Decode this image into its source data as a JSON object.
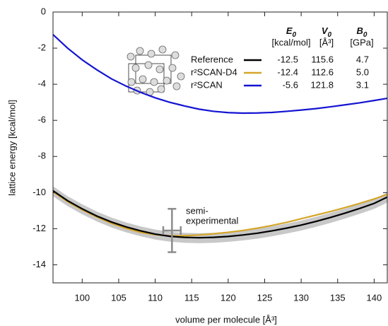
{
  "chart_data": {
    "type": "line",
    "xlabel": "volume per molecule [Å³]",
    "ylabel": "lattice energy  [kcal/mol]",
    "xlim": [
      96,
      141.8
    ],
    "ylim": [
      -15,
      0
    ],
    "xticks": [
      100,
      105,
      110,
      115,
      120,
      125,
      130,
      135,
      140
    ],
    "yticks": [
      0,
      -2,
      -4,
      -6,
      -8,
      -10,
      -12,
      -14
    ],
    "x": [
      96,
      98,
      100,
      102,
      104,
      106,
      108,
      110,
      112,
      114,
      116,
      118,
      120,
      122,
      124,
      126,
      128,
      130,
      132,
      134,
      136,
      138,
      140,
      141.8
    ],
    "series": [
      {
        "name": "Reference",
        "color": "#000000",
        "values": [
          -9.9,
          -10.45,
          -10.9,
          -11.3,
          -11.63,
          -11.9,
          -12.12,
          -12.3,
          -12.42,
          -12.48,
          -12.5,
          -12.48,
          -12.43,
          -12.35,
          -12.25,
          -12.12,
          -11.97,
          -11.8,
          -11.6,
          -11.38,
          -11.14,
          -10.88,
          -10.6,
          -10.25
        ]
      },
      {
        "name": "r²SCAN-D4",
        "color": "#d4a62a",
        "values": [
          -9.95,
          -10.5,
          -10.95,
          -11.35,
          -11.7,
          -11.98,
          -12.2,
          -12.33,
          -12.4,
          -12.39,
          -12.35,
          -12.28,
          -12.2,
          -12.1,
          -11.97,
          -11.82,
          -11.65,
          -11.45,
          -11.25,
          -11.05,
          -10.83,
          -10.6,
          -10.35,
          -10.1
        ]
      },
      {
        "name": "r²SCAN",
        "color": "#1414d2",
        "values": [
          -1.25,
          -2.0,
          -2.65,
          -3.2,
          -3.7,
          -4.1,
          -4.45,
          -4.75,
          -5.0,
          -5.2,
          -5.38,
          -5.5,
          -5.57,
          -5.6,
          -5.59,
          -5.56,
          -5.5,
          -5.43,
          -5.35,
          -5.25,
          -5.14,
          -5.03,
          -4.9,
          -4.78
        ]
      }
    ],
    "band": {
      "color": "#c8c8c8",
      "upper": [
        -9.65,
        -10.2,
        -10.65,
        -11.05,
        -11.38,
        -11.65,
        -11.87,
        -12.05,
        -12.17,
        -12.23,
        -12.25,
        -12.23,
        -12.18,
        -12.1,
        -12.0,
        -11.87,
        -11.72,
        -11.55,
        -11.35,
        -11.13,
        -10.89,
        -10.63,
        -10.35,
        -10.0
      ],
      "lower": [
        -10.2,
        -10.75,
        -11.2,
        -11.6,
        -11.93,
        -12.2,
        -12.42,
        -12.6,
        -12.72,
        -12.78,
        -12.8,
        -12.78,
        -12.73,
        -12.65,
        -12.55,
        -12.42,
        -12.27,
        -12.1,
        -11.9,
        -11.68,
        -11.44,
        -11.18,
        -10.9,
        -10.55
      ]
    },
    "errorbar": {
      "x": 112.3,
      "y": -12.1,
      "xerr": 1.2,
      "yerr": 1.2,
      "color": "#8c8c8c",
      "label": [
        "semi-",
        "experimental"
      ]
    },
    "table": {
      "columns": [
        {
          "symbol": "E",
          "sub": "0",
          "unit": "[kcal/mol]"
        },
        {
          "symbol": "V",
          "sub": "0",
          "unit": "[Å³]"
        },
        {
          "symbol": "B",
          "sub": "0",
          "unit": "[GPa]"
        }
      ],
      "rows": [
        [
          "-12.5",
          "115.6",
          "4.7"
        ],
        [
          "-12.4",
          "112.6",
          "5.0"
        ],
        [
          "-5.6",
          "121.8",
          "3.1"
        ]
      ]
    }
  }
}
